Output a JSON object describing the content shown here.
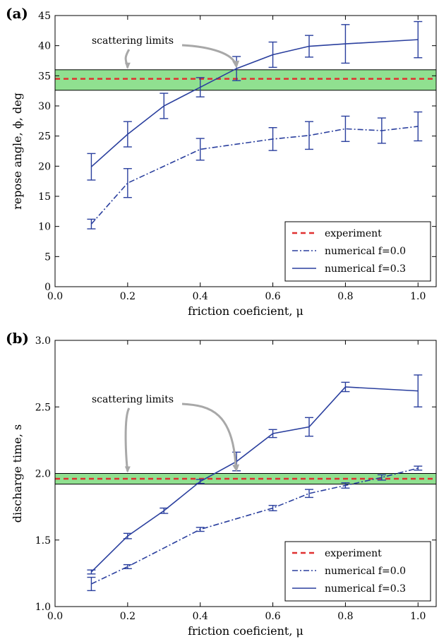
{
  "chart_data": [
    {
      "type": "line",
      "panel_label": "(a)",
      "xlabel": "friction coeficient, μ",
      "ylabel": "repose angle, ϕ, deg",
      "xlim": [
        0.0,
        1.05
      ],
      "ylim": [
        0,
        45
      ],
      "xticks": [
        "0.0",
        "0.2",
        "0.4",
        "0.6",
        "0.8",
        "1.0"
      ],
      "yticks": [
        "0",
        "5",
        "10",
        "15",
        "20",
        "25",
        "30",
        "35",
        "40",
        "45"
      ],
      "annotation": "scattering limits",
      "legend_position": "lower-right",
      "band": {
        "y_low": 32.6,
        "y_high": 36.0,
        "color": "#90e090"
      },
      "experiment": {
        "name": "experiment",
        "y": 34.5,
        "color": "#e03030"
      },
      "series": [
        {
          "name": "numerical f=0.0",
          "style": "dashdot",
          "color": "#2a3f9e",
          "x": [
            0.1,
            0.2,
            0.4,
            0.6,
            0.7,
            0.8,
            0.9,
            1.0
          ],
          "values": [
            10.4,
            17.2,
            22.8,
            24.5,
            25.1,
            26.2,
            25.9,
            26.6
          ],
          "err": [
            0.8,
            2.4,
            1.8,
            1.9,
            2.3,
            2.1,
            2.1,
            2.4
          ]
        },
        {
          "name": "numerical f=0.3",
          "style": "solid",
          "color": "#2a3f9e",
          "x": [
            0.1,
            0.2,
            0.3,
            0.4,
            0.5,
            0.6,
            0.7,
            0.8,
            1.0
          ],
          "values": [
            19.9,
            25.3,
            30.0,
            33.1,
            36.2,
            38.5,
            39.9,
            40.3,
            41.0
          ],
          "err": [
            2.2,
            2.1,
            2.1,
            1.6,
            2.0,
            2.1,
            1.8,
            3.2,
            3.0
          ]
        }
      ]
    },
    {
      "type": "line",
      "panel_label": "(b)",
      "xlabel": "friction coeficient, μ",
      "ylabel": "discharge time, s",
      "xlim": [
        0.0,
        1.05
      ],
      "ylim": [
        1.0,
        3.0
      ],
      "xticks": [
        "0.0",
        "0.2",
        "0.4",
        "0.6",
        "0.8",
        "1.0"
      ],
      "yticks": [
        "1.0",
        "1.5",
        "2.0",
        "2.5",
        "3.0"
      ],
      "annotation": "scattering limits",
      "legend_position": "lower-right",
      "band": {
        "y_low": 1.92,
        "y_high": 2.0,
        "color": "#90e090"
      },
      "experiment": {
        "name": "experiment",
        "y": 1.96,
        "color": "#e03030"
      },
      "series": [
        {
          "name": "numerical f=0.0",
          "style": "dashdot",
          "color": "#2a3f9e",
          "x": [
            0.1,
            0.2,
            0.4,
            0.6,
            0.7,
            0.8,
            0.9,
            1.0
          ],
          "values": [
            1.17,
            1.3,
            1.58,
            1.74,
            1.85,
            1.91,
            1.97,
            2.04
          ],
          "err": [
            0.05,
            0.015,
            0.015,
            0.02,
            0.03,
            0.02,
            0.02,
            0.015
          ]
        },
        {
          "name": "numerical f=0.3",
          "style": "solid",
          "color": "#2a3f9e",
          "x": [
            0.1,
            0.2,
            0.3,
            0.4,
            0.5,
            0.6,
            0.7,
            0.8,
            1.0
          ],
          "values": [
            1.26,
            1.53,
            1.72,
            1.94,
            2.09,
            2.3,
            2.35,
            2.65,
            2.62
          ],
          "err": [
            0.015,
            0.02,
            0.02,
            0.015,
            0.07,
            0.03,
            0.07,
            0.035,
            0.12
          ]
        }
      ]
    }
  ]
}
